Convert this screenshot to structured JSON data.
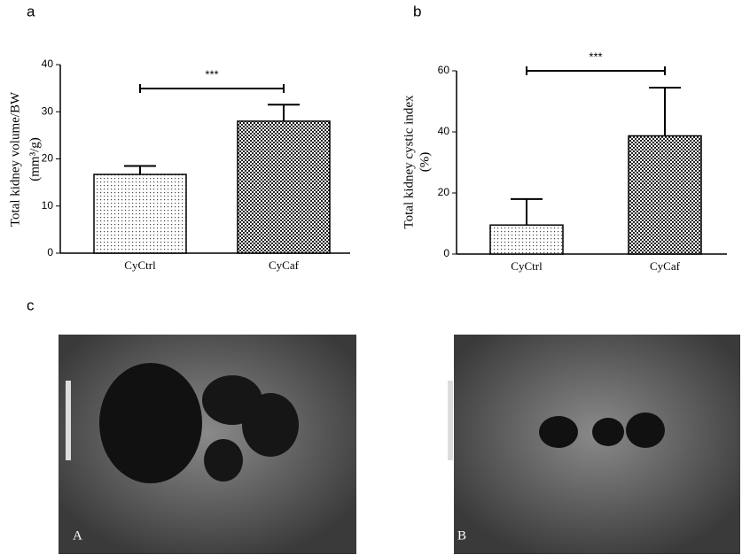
{
  "chart_data": [
    {
      "type": "bar",
      "panel": "a",
      "ylabel": [
        "Total kidney volume/BW",
        "(mm³/g)"
      ],
      "categories": [
        "CyCtrl",
        "CyCaf"
      ],
      "values": [
        16.7,
        28
      ],
      "errors": [
        1.8,
        3.5
      ],
      "ylim": [
        0,
        40
      ],
      "yticks": [
        0,
        10,
        20,
        30,
        40
      ],
      "annotation": "***"
    },
    {
      "type": "bar",
      "panel": "b",
      "ylabel": [
        "Total kidney cystic index",
        "(%)"
      ],
      "categories": [
        "CyCtrl",
        "CyCaf"
      ],
      "values": [
        9.5,
        38.7
      ],
      "errors": [
        8.5,
        15.8
      ],
      "ylim": [
        0,
        60
      ],
      "yticks": [
        0,
        20,
        40,
        60
      ],
      "annotation": "***"
    }
  ],
  "ultrasound": {
    "panel": "c",
    "images": [
      "A",
      "B"
    ]
  }
}
